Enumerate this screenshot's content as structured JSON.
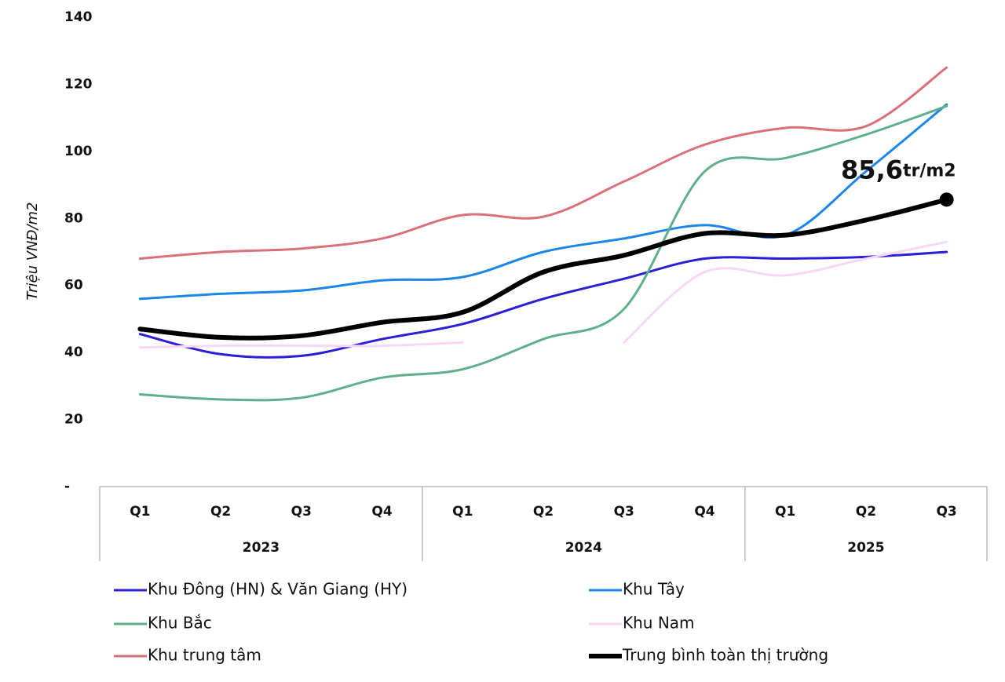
{
  "chart_data": {
    "type": "line",
    "y_label": "Triệu VNĐ/m2",
    "categories": [
      "Q1",
      "Q2",
      "Q3",
      "Q4",
      "Q1",
      "Q2",
      "Q3",
      "Q4",
      "Q1",
      "Q2",
      "Q3"
    ],
    "years": [
      "2023",
      "2024",
      "2025"
    ],
    "series": [
      {
        "name": "Khu Đông (HN) & Văn Giang (HY)",
        "color": "#2a1ed6",
        "values": [
          45.5,
          39.5,
          39,
          44,
          48.5,
          56,
          62,
          68,
          68,
          68.5,
          70
        ]
      },
      {
        "name": "Khu Tây",
        "color": "#1a86e8",
        "values": [
          56,
          57.5,
          58.5,
          61.5,
          62.5,
          70,
          74,
          78,
          75,
          94,
          114
        ]
      },
      {
        "name": "Khu Bắc",
        "color": "#5fb08a",
        "values": [
          27.5,
          26,
          26.5,
          32.5,
          35,
          44,
          53,
          94,
          98,
          105,
          113.5
        ]
      },
      {
        "name": "Khu Nam",
        "color": "#f7d6f7",
        "values": [
          41.5,
          42,
          42,
          42,
          43,
          null,
          43,
          64,
          63,
          68,
          73
        ]
      },
      {
        "name": "Khu trung tâm",
        "color": "#d9707a",
        "values": [
          68,
          70,
          71,
          74,
          81,
          80.5,
          91,
          102,
          107,
          107.5,
          125
        ]
      },
      {
        "name": "Trung bình toàn thị trường",
        "color": "#000000",
        "values": [
          47,
          44.5,
          45,
          49,
          52,
          64,
          69,
          75.5,
          75,
          79.5,
          85.6
        ],
        "value_labels": [
          null,
          null,
          null,
          null,
          null,
          null,
          null,
          null,
          null,
          null,
          "85,6tr/m2"
        ]
      }
    ],
    "ylim": [
      0,
      140
    ],
    "yticks": [
      {
        "value": 0,
        "label": "-"
      },
      20,
      40,
      60,
      80,
      100,
      120,
      140
    ],
    "grid": false
  }
}
